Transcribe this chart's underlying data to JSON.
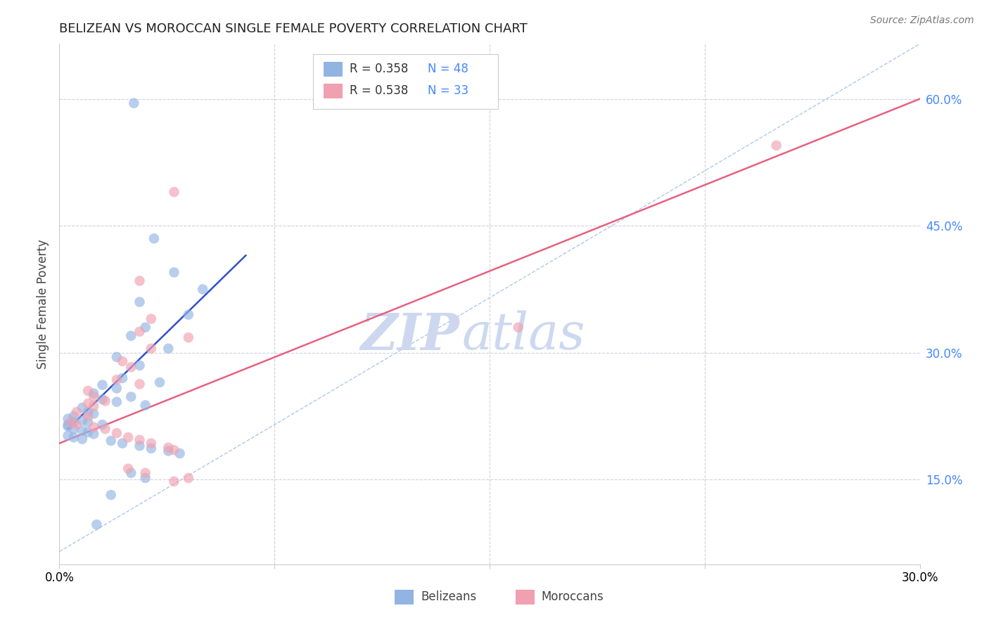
{
  "title": "BELIZEAN VS MOROCCAN SINGLE FEMALE POVERTY CORRELATION CHART",
  "source": "Source: ZipAtlas.com",
  "ylabel": "Single Female Poverty",
  "ylabel_right_ticks": [
    "60.0%",
    "45.0%",
    "30.0%",
    "15.0%"
  ],
  "ylabel_right_vals": [
    0.6,
    0.45,
    0.3,
    0.15
  ],
  "xmin": 0.0,
  "xmax": 0.3,
  "ymin": 0.05,
  "ymax": 0.665,
  "legend_blue_r": "R = 0.358",
  "legend_blue_n": "N = 48",
  "legend_pink_r": "R = 0.538",
  "legend_pink_n": "N = 33",
  "blue_color": "#92b4e3",
  "pink_color": "#f0a0b0",
  "blue_line_color": "#3050c8",
  "pink_line_color": "#e86080",
  "dashed_line_color": "#b0c8e8",
  "grid_color": "#d0d0e0",
  "watermark_color": "#cdd8f0",
  "blue_dots": [
    [
      0.026,
      0.595
    ],
    [
      0.033,
      0.435
    ],
    [
      0.04,
      0.395
    ],
    [
      0.05,
      0.375
    ],
    [
      0.028,
      0.36
    ],
    [
      0.045,
      0.345
    ],
    [
      0.03,
      0.33
    ],
    [
      0.025,
      0.32
    ],
    [
      0.038,
      0.305
    ],
    [
      0.02,
      0.295
    ],
    [
      0.028,
      0.285
    ],
    [
      0.022,
      0.27
    ],
    [
      0.035,
      0.265
    ],
    [
      0.015,
      0.262
    ],
    [
      0.02,
      0.258
    ],
    [
      0.012,
      0.252
    ],
    [
      0.025,
      0.248
    ],
    [
      0.015,
      0.245
    ],
    [
      0.02,
      0.242
    ],
    [
      0.03,
      0.238
    ],
    [
      0.008,
      0.235
    ],
    [
      0.01,
      0.23
    ],
    [
      0.012,
      0.228
    ],
    [
      0.005,
      0.225
    ],
    [
      0.003,
      0.222
    ],
    [
      0.008,
      0.22
    ],
    [
      0.01,
      0.218
    ],
    [
      0.015,
      0.215
    ],
    [
      0.003,
      0.213
    ],
    [
      0.005,
      0.21
    ],
    [
      0.008,
      0.208
    ],
    [
      0.01,
      0.206
    ],
    [
      0.012,
      0.204
    ],
    [
      0.003,
      0.202
    ],
    [
      0.005,
      0.2
    ],
    [
      0.008,
      0.198
    ],
    [
      0.018,
      0.196
    ],
    [
      0.022,
      0.193
    ],
    [
      0.028,
      0.19
    ],
    [
      0.032,
      0.187
    ],
    [
      0.038,
      0.184
    ],
    [
      0.042,
      0.181
    ],
    [
      0.025,
      0.158
    ],
    [
      0.03,
      0.152
    ],
    [
      0.018,
      0.132
    ],
    [
      0.013,
      0.097
    ],
    [
      0.003,
      0.215
    ],
    [
      0.005,
      0.218
    ]
  ],
  "pink_dots": [
    [
      0.04,
      0.49
    ],
    [
      0.028,
      0.385
    ],
    [
      0.032,
      0.34
    ],
    [
      0.028,
      0.325
    ],
    [
      0.045,
      0.318
    ],
    [
      0.032,
      0.305
    ],
    [
      0.022,
      0.29
    ],
    [
      0.025,
      0.283
    ],
    [
      0.02,
      0.268
    ],
    [
      0.028,
      0.263
    ],
    [
      0.01,
      0.255
    ],
    [
      0.012,
      0.248
    ],
    [
      0.016,
      0.243
    ],
    [
      0.01,
      0.24
    ],
    [
      0.012,
      0.237
    ],
    [
      0.006,
      0.23
    ],
    [
      0.01,
      0.225
    ],
    [
      0.004,
      0.218
    ],
    [
      0.006,
      0.215
    ],
    [
      0.012,
      0.212
    ],
    [
      0.016,
      0.21
    ],
    [
      0.02,
      0.205
    ],
    [
      0.024,
      0.2
    ],
    [
      0.028,
      0.197
    ],
    [
      0.032,
      0.193
    ],
    [
      0.038,
      0.188
    ],
    [
      0.04,
      0.185
    ],
    [
      0.024,
      0.163
    ],
    [
      0.03,
      0.158
    ],
    [
      0.045,
      0.152
    ],
    [
      0.04,
      0.148
    ],
    [
      0.16,
      0.33
    ],
    [
      0.25,
      0.545
    ]
  ],
  "blue_trendline": [
    [
      0.003,
      0.21
    ],
    [
      0.065,
      0.415
    ]
  ],
  "pink_trendline": [
    [
      0.0,
      0.193
    ],
    [
      0.3,
      0.6
    ]
  ],
  "dashed_line": [
    [
      0.0,
      0.065
    ],
    [
      0.3,
      0.665
    ]
  ]
}
